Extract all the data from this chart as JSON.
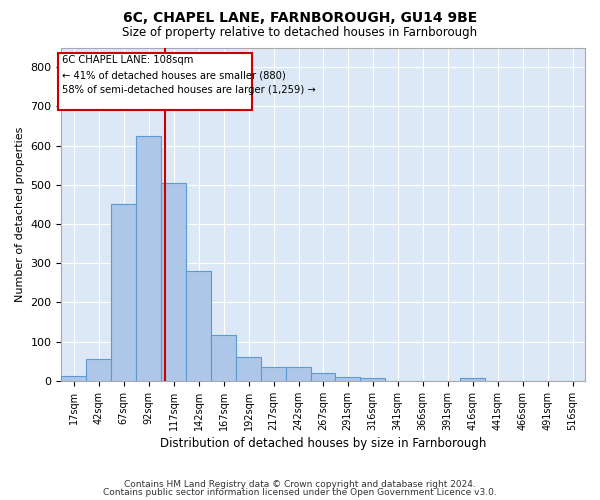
{
  "title1": "6C, CHAPEL LANE, FARNBOROUGH, GU14 9BE",
  "title2": "Size of property relative to detached houses in Farnborough",
  "xlabel": "Distribution of detached houses by size in Farnborough",
  "ylabel": "Number of detached properties",
  "bin_labels": [
    "17sqm",
    "42sqm",
    "67sqm",
    "92sqm",
    "117sqm",
    "142sqm",
    "167sqm",
    "192sqm",
    "217sqm",
    "242sqm",
    "267sqm",
    "291sqm",
    "316sqm",
    "341sqm",
    "366sqm",
    "391sqm",
    "416sqm",
    "441sqm",
    "466sqm",
    "491sqm",
    "516sqm"
  ],
  "bin_edges": [
    4.5,
    29.5,
    54.5,
    79.5,
    104.5,
    129.5,
    154.5,
    179.5,
    204.5,
    229.5,
    254.5,
    278.5,
    303.5,
    328.5,
    353.5,
    378.5,
    403.5,
    428.5,
    453.5,
    478.5,
    503.5,
    528.5
  ],
  "bar_heights": [
    13,
    55,
    450,
    625,
    505,
    280,
    117,
    62,
    35,
    35,
    20,
    10,
    8,
    0,
    0,
    0,
    8,
    0,
    0,
    0,
    0
  ],
  "bar_color": "#aec6e8",
  "bar_edge_color": "#5b9bd5",
  "property_size": 108,
  "vline_color": "#cc0000",
  "annotation_line1": "6C CHAPEL LANE: 108sqm",
  "annotation_line2": "← 41% of detached houses are smaller (880)",
  "annotation_line3": "58% of semi-detached houses are larger (1,259) →",
  "annotation_box_color": "#cc0000",
  "ylim": [
    0,
    850
  ],
  "yticks": [
    0,
    100,
    200,
    300,
    400,
    500,
    600,
    700,
    800
  ],
  "background_color": "#dce8f5",
  "footer1": "Contains HM Land Registry data © Crown copyright and database right 2024.",
  "footer2": "Contains public sector information licensed under the Open Government Licence v3.0."
}
